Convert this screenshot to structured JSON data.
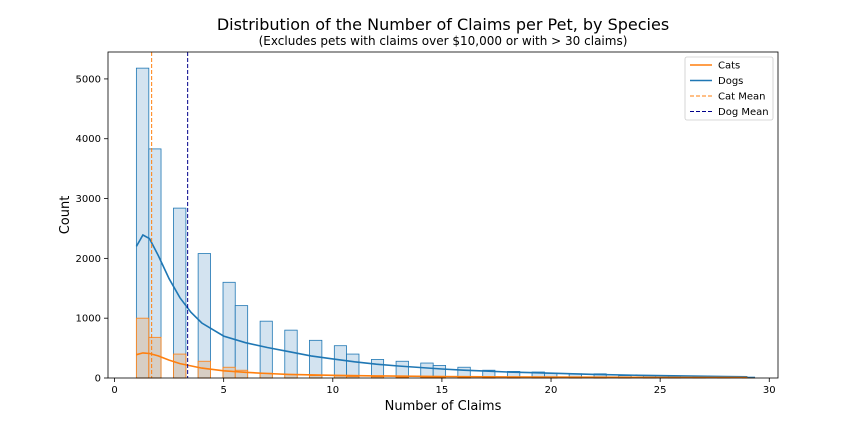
{
  "chart_data": {
    "type": "bar",
    "title": "Distribution of the Number of Claims per Pet, by Species",
    "subtitle": "(Excludes pets with claims over $10,000 or with > 30 claims)",
    "xlabel": "Number of Claims",
    "ylabel": "Count",
    "xlim": [
      -0.3,
      30.4
    ],
    "ylim": [
      0,
      5450
    ],
    "x_ticks": [
      0,
      5,
      10,
      15,
      20,
      25,
      30
    ],
    "y_ticks": [
      0,
      1000,
      2000,
      3000,
      4000,
      5000
    ],
    "grid": false,
    "legend_position": "top-right",
    "colors": {
      "cats": "#ff7f0e",
      "dogs": "#1f77b4",
      "dog_fill": "#d3e3f0",
      "cat_fill": "#d8c7b5",
      "dog_mean": "#00008b"
    },
    "bin_edges": [
      1.0,
      1.57,
      2.13,
      2.7,
      3.27,
      3.83,
      4.4,
      4.97,
      5.53,
      6.1,
      6.67,
      7.23,
      7.8,
      8.37,
      8.93,
      9.5,
      10.07,
      10.63,
      11.2,
      11.77,
      12.33,
      12.9,
      13.47,
      14.03,
      14.6,
      15.17,
      15.73,
      16.3,
      16.87,
      17.43,
      18.0,
      18.57,
      19.13,
      19.7,
      20.27,
      20.83,
      21.4,
      21.97,
      22.53,
      23.1,
      23.67,
      24.23,
      24.8,
      25.37,
      25.93,
      26.5,
      27.07,
      27.63,
      28.2,
      28.77,
      29.33
    ],
    "series": [
      {
        "name": "Dogs",
        "histogram": [
          5180,
          3830,
          0,
          2840,
          0,
          2080,
          0,
          1600,
          1210,
          0,
          950,
          0,
          800,
          0,
          630,
          0,
          540,
          400,
          0,
          310,
          0,
          280,
          0,
          250,
          210,
          0,
          180,
          0,
          130,
          0,
          110,
          0,
          100,
          80,
          0,
          70,
          0,
          70,
          0,
          40,
          0,
          40,
          0,
          30,
          0,
          25,
          0,
          20,
          0,
          15
        ],
        "kde": {
          "x": [
            1.0,
            1.3,
            1.6,
            2.0,
            2.5,
            3.0,
            3.5,
            4.0,
            5.0,
            6.0,
            7.0,
            8.0,
            9.0,
            10.0,
            11.0,
            12.0,
            13.0,
            14.0,
            15.0,
            16.0,
            17.0,
            18.0,
            19.0,
            20.0,
            22.0,
            24.0,
            26.0,
            28.0,
            29.0
          ],
          "y": [
            2200,
            2390,
            2330,
            2050,
            1660,
            1340,
            1100,
            920,
            700,
            590,
            510,
            440,
            370,
            320,
            270,
            230,
            200,
            175,
            150,
            130,
            115,
            100,
            90,
            80,
            60,
            45,
            35,
            25,
            20
          ]
        }
      },
      {
        "name": "Cats",
        "histogram": [
          1000,
          680,
          0,
          400,
          0,
          280,
          0,
          180,
          130,
          0,
          80,
          0,
          60,
          0,
          40,
          0,
          35,
          25,
          0,
          20,
          0,
          15,
          0,
          15,
          10,
          0,
          10,
          0,
          8,
          0,
          6,
          0,
          5,
          5,
          0,
          4,
          0,
          4,
          0,
          3,
          0,
          3,
          0,
          2,
          0,
          2,
          0,
          2,
          0,
          1
        ],
        "kde": {
          "x": [
            1.0,
            1.3,
            1.6,
            2.0,
            2.5,
            3.0,
            4.0,
            5.0,
            6.0,
            7.0,
            8.0,
            10.0,
            12.0,
            15.0,
            20.0,
            25.0,
            29.0
          ],
          "y": [
            390,
            420,
            410,
            370,
            300,
            240,
            165,
            120,
            95,
            75,
            60,
            45,
            35,
            25,
            15,
            10,
            8
          ]
        }
      }
    ],
    "reference_lines": [
      {
        "name": "Cat Mean",
        "x": 1.7,
        "color": "#ff7f0e",
        "style": "dashed"
      },
      {
        "name": "Dog Mean",
        "x": 3.35,
        "color": "#00008b",
        "style": "dashed"
      }
    ],
    "legend": [
      {
        "label": "Cats",
        "style": "solid",
        "color": "#ff7f0e"
      },
      {
        "label": "Dogs",
        "style": "solid",
        "color": "#1f77b4"
      },
      {
        "label": "Cat Mean",
        "style": "dashed",
        "color": "#ff7f0e"
      },
      {
        "label": "Dog Mean",
        "style": "dashed",
        "color": "#00008b"
      }
    ]
  }
}
